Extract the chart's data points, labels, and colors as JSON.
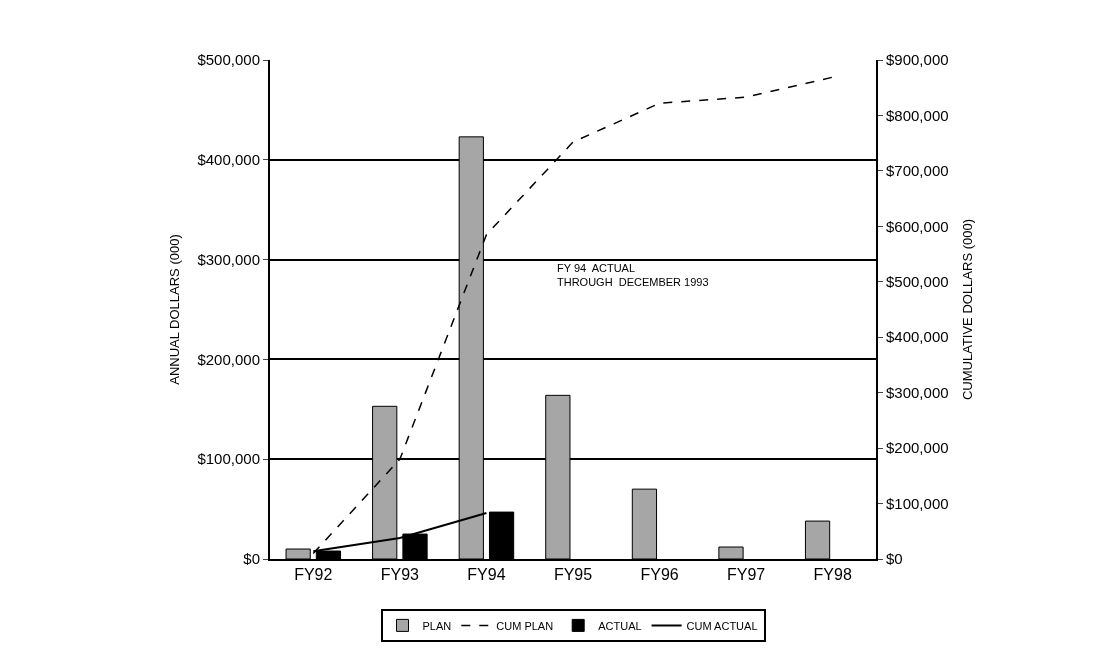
{
  "chart_data": {
    "type": "bar",
    "categories": [
      "FY92",
      "FY93",
      "FY94",
      "FY95",
      "FY96",
      "FY97",
      "FY98"
    ],
    "ylabel": "ANNUAL DOLLARS (000)",
    "y2label": "CUMULATIVE DOLLARS (000)",
    "series": [
      {
        "name": "PLAN",
        "color": "#a6a6a6",
        "values": [
          10000,
          153000,
          423000,
          164000,
          70000,
          12000,
          38000
        ]
      },
      {
        "name": "CUM PLAN",
        "type": "line",
        "axis": "y2",
        "color": "#000000",
        "line_style": "dashed",
        "values": [
          10000,
          180000,
          585000,
          752000,
          822000,
          833000,
          869000
        ]
      },
      {
        "name": "ACTUAL",
        "color": "#000000",
        "values": [
          8000,
          25000,
          47000,
          null,
          null,
          null,
          null
        ]
      },
      {
        "name": "CUM ACTUAL",
        "type": "line",
        "axis": "y2",
        "color": "#000000",
        "line_style": "solid",
        "values": [
          14000,
          38000,
          83000,
          null,
          null,
          null,
          null
        ]
      }
    ],
    "ylim": [
      0,
      500000
    ],
    "yticks": [
      {
        "value": 0,
        "label": "$0"
      },
      {
        "value": 100000,
        "label": "$100,000"
      },
      {
        "value": 200000,
        "label": "$200,000"
      },
      {
        "value": 300000,
        "label": "$300,000"
      },
      {
        "value": 400000,
        "label": "$400,000"
      },
      {
        "value": 500000,
        "label": "$500,000"
      }
    ],
    "y2lim": [
      0,
      900000
    ],
    "y2ticks": [
      {
        "value": 0,
        "label": "$0"
      },
      {
        "value": 100000,
        "label": "$100,000"
      },
      {
        "value": 200000,
        "label": "$200,000"
      },
      {
        "value": 300000,
        "label": "$300,000"
      },
      {
        "value": 400000,
        "label": "$400,000"
      },
      {
        "value": 500000,
        "label": "$500,000"
      },
      {
        "value": 600000,
        "label": "$600,000"
      },
      {
        "value": 700000,
        "label": "$700,000"
      },
      {
        "value": 800000,
        "label": "$800,000"
      },
      {
        "value": 900000,
        "label": "$900,000"
      }
    ],
    "annotations": [
      "FY 94  ACTUAL\nTHROUGH  DECEMBER 1993"
    ],
    "grid": "y",
    "legend": "bottom",
    "marker": "none"
  }
}
